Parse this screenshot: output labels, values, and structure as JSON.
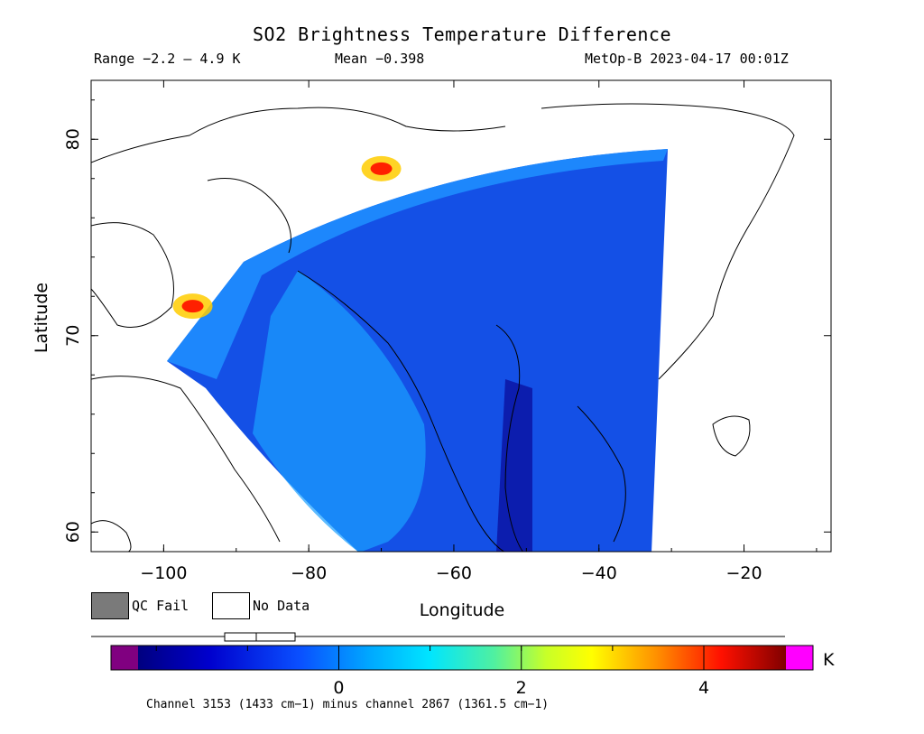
{
  "header": {
    "title": "SO2 Brightness Temperature Difference",
    "range": "Range −2.2 – 4.9 K",
    "mean": "Mean −0.398",
    "satellite_time": "MetOp-B 2023-04-17 00:01Z"
  },
  "map": {
    "x_axis_label": "Longitude",
    "y_axis_label": "Latitude",
    "x_ticks": [
      "−100",
      "−80",
      "−60",
      "−40",
      "−20"
    ],
    "y_ticks": [
      "60",
      "70",
      "80"
    ],
    "lon_range": [
      -110,
      -8
    ],
    "lat_range": [
      59,
      83
    ],
    "hotspots": [
      {
        "lon": -96,
        "lat": 71.5,
        "value": 4.5
      },
      {
        "lon": -70,
        "lat": 78.5,
        "value": 4.8
      }
    ]
  },
  "legend": {
    "qc_fail_label": "QC Fail",
    "no_data_label": "No Data",
    "qc_fail_color": "#7a7a7a",
    "no_data_color": "#ffffff"
  },
  "colorbar": {
    "unit": "K",
    "ticks": [
      "0",
      "2",
      "4"
    ],
    "tick_values": [
      0,
      2,
      4
    ],
    "min": -2.2,
    "max": 4.9,
    "underflow_color": "#800080",
    "overflow_color": "#ff00ff",
    "footnote": "Channel 3153 (1433 cm−1) minus channel 2867 (1361.5 cm−1)"
  }
}
